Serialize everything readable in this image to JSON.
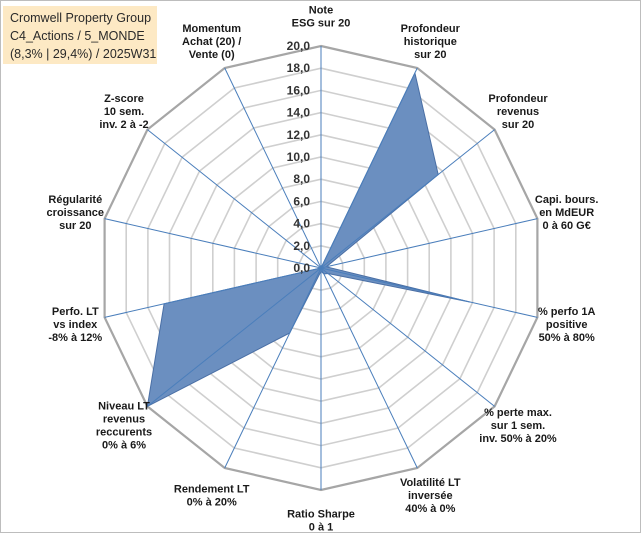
{
  "title_box": {
    "line1": "Cromwell Property Group",
    "line2": "C4_Actions / 5_MONDE",
    "line3": "(8,3% | 29,4%) / 2025W31"
  },
  "chart_data": {
    "type": "radar",
    "title": "Cromwell Property Group",
    "subtitle": "C4_Actions / 5_MONDE (8,3% | 29,4%) / 2025W31",
    "rlim": [
      0,
      20
    ],
    "r_ticks": [
      "0,0",
      "2,0",
      "4,0",
      "6,0",
      "8,0",
      "10,0",
      "12,0",
      "14,0",
      "16,0",
      "18,0",
      "20,0"
    ],
    "grid": true,
    "fill_color": "#6b8fc0",
    "line_color": "#4a6fa5",
    "axes": [
      {
        "label": [
          "Note",
          "ESG sur 20"
        ],
        "value": 0
      },
      {
        "label": [
          "Profondeur",
          "historique",
          "sur 20"
        ],
        "value": 19.5
      },
      {
        "label": [
          "Profondeur",
          "revenus",
          "sur 20"
        ],
        "value": 13.5
      },
      {
        "label": [
          "Capi. bours.",
          "en MdEUR",
          "0 à 60 G€"
        ],
        "value": 0.5
      },
      {
        "label": [
          "% perfo 1A",
          "positive",
          "50% à 80%"
        ],
        "value": 13.8
      },
      {
        "label": [
          "% perte max.",
          "sur 1 sem.",
          "inv. 50% à 20%"
        ],
        "value": 0.8
      },
      {
        "label": [
          "Volatilité LT",
          "inversée",
          "40% à 0%"
        ],
        "value": 0.6
      },
      {
        "label": [
          "Ratio Sharpe",
          "0 à 1"
        ],
        "value": 0.3
      },
      {
        "label": [
          "Rendement LT",
          "0% à 20%"
        ],
        "value": 6.5
      },
      {
        "label": [
          "Niveau LT",
          "revenus",
          "reccurents",
          "0% à 6%"
        ],
        "value": 20
      },
      {
        "label": [
          "Perfo. LT",
          "vs index",
          "-8% à 12%"
        ],
        "value": 14.5
      },
      {
        "label": [
          "Régularité",
          "croissance",
          "sur 20"
        ],
        "value": 0
      },
      {
        "label": [
          "Z-score",
          "10 sem.",
          "inv. 2 à -2"
        ],
        "value": 0
      },
      {
        "label": [
          "Momentum",
          "Achat (20) /",
          "Vente (0)"
        ],
        "value": 0
      }
    ]
  }
}
